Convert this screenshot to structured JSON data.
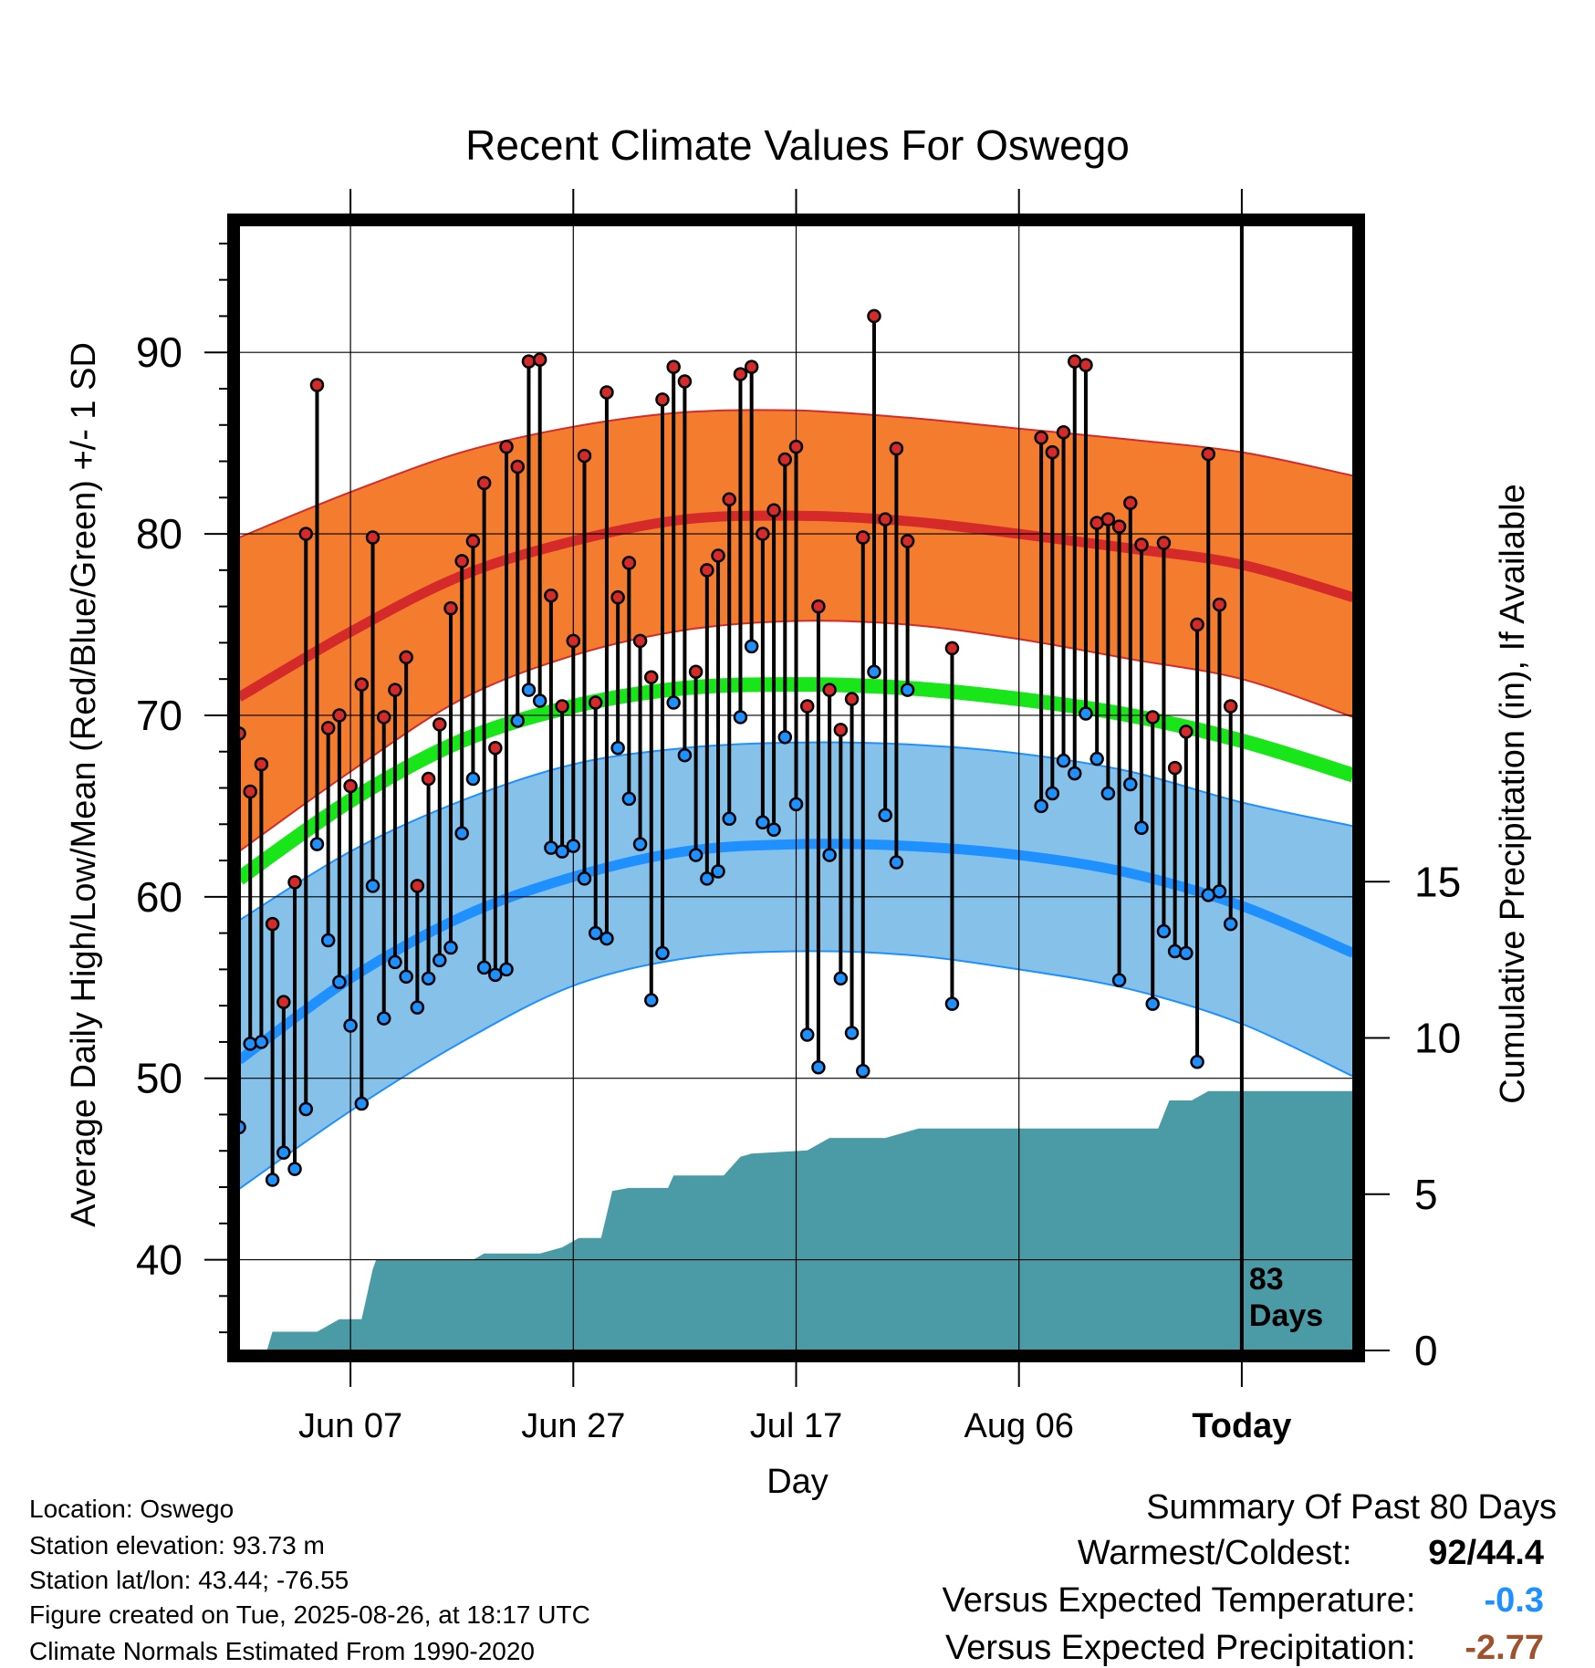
{
  "chart_data": {
    "type": "line",
    "title": "Recent Climate Values For Oswego",
    "xlabel": "Day",
    "ylabel": "Average Daily High/Low/Mean (Red/Blue/Green) +/- 1 SD",
    "ylabel2": "Cumulative Precipitation (in), If Available",
    "x_tick_labels": [
      "Jun 07",
      "Jun 27",
      "Jul 17",
      "Aug 06",
      "Today"
    ],
    "x_tick_days": [
      0,
      20,
      40,
      60,
      80
    ],
    "xlim": [
      -10,
      90
    ],
    "ylim": [
      35,
      97
    ],
    "y_ticks": [
      40,
      50,
      60,
      70,
      80,
      90
    ],
    "precip_ylim": [
      0,
      36
    ],
    "precip_ticks": [
      0,
      5,
      10,
      15
    ],
    "today_marker": {
      "day": 80,
      "label_line1": "83",
      "label_line2": "Days"
    },
    "grid": true,
    "colors": {
      "high_band": "#f47c2e",
      "high_mean": "#d42a2a",
      "low_band": "#85c1e9",
      "low_mean": "#1e90ff",
      "mean": "#19e619",
      "precip": "#4a9ba5",
      "high_point": "#d42a2a",
      "low_point": "#1e90ff"
    },
    "normals": {
      "days": [
        -10,
        0,
        10,
        20,
        30,
        40,
        50,
        60,
        70,
        80,
        90
      ],
      "high_mean": [
        71,
        74.6,
        77.7,
        79.6,
        80.8,
        81.0,
        80.7,
        80.0,
        79.2,
        78.3,
        76.5
      ],
      "high_upper": [
        79.8,
        82.3,
        84.5,
        85.9,
        86.7,
        86.8,
        86.4,
        85.8,
        85.2,
        84.5,
        83.2
      ],
      "high_lower": [
        62.5,
        66.9,
        70.9,
        73.3,
        74.7,
        75.2,
        75.0,
        74.2,
        73.1,
        72.0,
        69.9
      ],
      "mean": [
        61,
        65.3,
        68.6,
        70.5,
        71.5,
        71.7,
        71.5,
        70.9,
        70.0,
        68.6,
        66.7
      ],
      "low_mean": [
        51,
        55.5,
        58.9,
        61.1,
        62.5,
        62.9,
        62.8,
        62.3,
        61.3,
        59.5,
        56.9
      ],
      "low_upper": [
        58.7,
        62.5,
        65.3,
        67.3,
        68.2,
        68.5,
        68.4,
        67.9,
        66.9,
        65.2,
        63.9
      ],
      "low_lower": [
        43.9,
        48.2,
        52.0,
        55.1,
        56.6,
        57.0,
        56.8,
        56.0,
        54.9,
        53.0,
        50.1
      ]
    },
    "daily": [
      {
        "day": -10,
        "high": 69.0,
        "low": 47.3
      },
      {
        "day": -9,
        "high": 65.8,
        "low": 51.9
      },
      {
        "day": -8,
        "high": 67.3,
        "low": 52.0
      },
      {
        "day": -7,
        "high": 58.5,
        "low": 44.4
      },
      {
        "day": -6,
        "high": 54.2,
        "low": 45.9
      },
      {
        "day": -5,
        "high": 60.8,
        "low": 45.0
      },
      {
        "day": -4,
        "high": 80.0,
        "low": 48.3
      },
      {
        "day": -3,
        "high": 88.2,
        "low": 62.9
      },
      {
        "day": -2,
        "high": 69.3,
        "low": 57.6
      },
      {
        "day": -1,
        "high": 70.0,
        "low": 55.3
      },
      {
        "day": 0,
        "high": 66.1,
        "low": 52.9
      },
      {
        "day": 1,
        "high": 71.7,
        "low": 48.6
      },
      {
        "day": 2,
        "high": 79.8,
        "low": 60.6
      },
      {
        "day": 3,
        "high": 69.9,
        "low": 53.3
      },
      {
        "day": 4,
        "high": 71.4,
        "low": 56.4
      },
      {
        "day": 5,
        "high": 73.2,
        "low": 55.6
      },
      {
        "day": 6,
        "high": 60.6,
        "low": 53.9
      },
      {
        "day": 7,
        "high": 66.5,
        "low": 55.5
      },
      {
        "day": 8,
        "high": 69.5,
        "low": 56.5
      },
      {
        "day": 9,
        "high": 75.9,
        "low": 57.2
      },
      {
        "day": 10,
        "high": 78.5,
        "low": 63.5
      },
      {
        "day": 11,
        "high": 79.6,
        "low": 66.5
      },
      {
        "day": 12,
        "high": 82.8,
        "low": 56.1
      },
      {
        "day": 13,
        "high": 68.2,
        "low": 55.7
      },
      {
        "day": 14,
        "high": 84.8,
        "low": 56.0
      },
      {
        "day": 15,
        "high": 83.7,
        "low": 69.7
      },
      {
        "day": 16,
        "high": 89.5,
        "low": 71.4
      },
      {
        "day": 17,
        "high": 89.6,
        "low": 70.8
      },
      {
        "day": 18,
        "high": 76.6,
        "low": 62.7
      },
      {
        "day": 19,
        "high": 70.5,
        "low": 62.5
      },
      {
        "day": 20,
        "high": 74.1,
        "low": 62.8
      },
      {
        "day": 21,
        "high": 84.3,
        "low": 61.0
      },
      {
        "day": 22,
        "high": 70.7,
        "low": 58.0
      },
      {
        "day": 23,
        "high": 87.8,
        "low": 57.7
      },
      {
        "day": 24,
        "high": 76.5,
        "low": 68.2
      },
      {
        "day": 25,
        "high": 78.4,
        "low": 65.4
      },
      {
        "day": 26,
        "high": 74.1,
        "low": 62.9
      },
      {
        "day": 27,
        "high": 72.1,
        "low": 54.3
      },
      {
        "day": 28,
        "high": 87.4,
        "low": 56.9
      },
      {
        "day": 29,
        "high": 89.2,
        "low": 70.7
      },
      {
        "day": 30,
        "high": 88.4,
        "low": 67.8
      },
      {
        "day": 31,
        "high": 72.4,
        "low": 62.3
      },
      {
        "day": 32,
        "high": 78.0,
        "low": 61.0
      },
      {
        "day": 33,
        "high": 78.8,
        "low": 61.4
      },
      {
        "day": 34,
        "high": 81.9,
        "low": 64.3
      },
      {
        "day": 35,
        "high": 88.8,
        "low": 69.9
      },
      {
        "day": 36,
        "high": 89.2,
        "low": 73.8
      },
      {
        "day": 37,
        "high": 80.0,
        "low": 64.1
      },
      {
        "day": 38,
        "high": 81.3,
        "low": 63.7
      },
      {
        "day": 39,
        "high": 84.1,
        "low": 68.8
      },
      {
        "day": 40,
        "high": 84.8,
        "low": 65.1
      },
      {
        "day": 41,
        "high": 70.5,
        "low": 52.4
      },
      {
        "day": 42,
        "high": 76.0,
        "low": 50.6
      },
      {
        "day": 43,
        "high": 71.4,
        "low": 62.3
      },
      {
        "day": 44,
        "high": 69.2,
        "low": 55.5
      },
      {
        "day": 45,
        "high": 70.9,
        "low": 52.5
      },
      {
        "day": 46,
        "high": 79.8,
        "low": 50.4
      },
      {
        "day": 47,
        "high": 92.0,
        "low": 72.4
      },
      {
        "day": 48,
        "high": 80.8,
        "low": 64.5
      },
      {
        "day": 49,
        "high": 84.7,
        "low": 61.9
      },
      {
        "day": 50,
        "high": 79.6,
        "low": 71.4
      },
      {
        "day": 54,
        "high": 73.7,
        "low": 54.1
      },
      {
        "day": 62,
        "high": 85.3,
        "low": 65.0
      },
      {
        "day": 63,
        "high": 84.5,
        "low": 65.7
      },
      {
        "day": 64,
        "high": 85.6,
        "low": 67.5
      },
      {
        "day": 65,
        "high": 89.5,
        "low": 66.8
      },
      {
        "day": 66,
        "high": 89.3,
        "low": 70.1
      },
      {
        "day": 67,
        "high": 80.6,
        "low": 67.6
      },
      {
        "day": 68,
        "high": 80.8,
        "low": 65.7
      },
      {
        "day": 69,
        "high": 80.4,
        "low": 55.4
      },
      {
        "day": 70,
        "high": 81.7,
        "low": 66.2
      },
      {
        "day": 71,
        "high": 79.4,
        "low": 63.8
      },
      {
        "day": 72,
        "high": 69.9,
        "low": 54.1
      },
      {
        "day": 73,
        "high": 79.5,
        "low": 58.1
      },
      {
        "day": 74,
        "high": 67.1,
        "low": 57.0
      },
      {
        "day": 75,
        "high": 69.1,
        "low": 56.9
      },
      {
        "day": 76,
        "high": 75.0,
        "low": 50.9
      },
      {
        "day": 77,
        "high": 84.4,
        "low": 60.1
      },
      {
        "day": 78,
        "high": 76.1,
        "low": 60.3
      },
      {
        "day": 79,
        "high": 70.5,
        "low": 58.5
      }
    ],
    "precip_cumulative": {
      "days": [
        -10,
        -7.5,
        -7,
        -3,
        -1,
        1,
        2,
        2.3,
        11,
        12,
        17,
        19,
        20.5,
        22.5,
        23.5,
        25,
        28.5,
        29,
        33.5,
        35,
        36,
        41,
        43,
        48,
        51,
        54,
        72.5,
        73.5,
        75.5,
        77,
        90
      ],
      "values": [
        0,
        0,
        0.6,
        0.6,
        1.0,
        1.0,
        2.6,
        2.9,
        2.9,
        3.1,
        3.1,
        3.3,
        3.6,
        3.6,
        5.1,
        5.2,
        5.2,
        5.6,
        5.6,
        6.2,
        6.3,
        6.4,
        6.8,
        6.8,
        7.1,
        7.1,
        7.1,
        8.0,
        8.0,
        8.3,
        8.3
      ]
    }
  },
  "info": {
    "location": "Location: Oswego",
    "elevation": "Station elevation: 93.73 m",
    "latlon": "Station lat/lon: 43.44; -76.55",
    "created": "Figure created on Tue, 2025-08-26, at 18:17 UTC",
    "normals": "Climate Normals Estimated From 1990-2020"
  },
  "summary": {
    "title": "Summary Of Past 80 Days",
    "warmest_label": "Warmest/Coldest:",
    "warmest_value_1": "92",
    "warmest_value_sep": "/",
    "warmest_value_2": "44.4",
    "temp_label": "Versus Expected Temperature:",
    "temp_value": "-0.3",
    "temp_color": "#1e90ff",
    "precip_label": "Versus Expected Precipitation:",
    "precip_value": "-2.77",
    "precip_color": "#a0522d"
  }
}
